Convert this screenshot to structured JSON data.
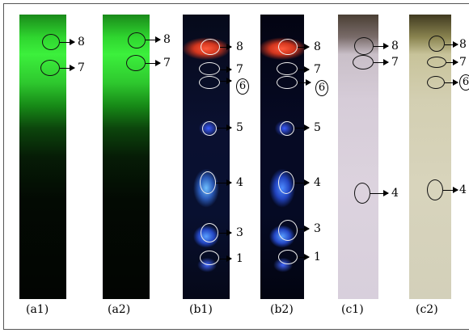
{
  "panels": {
    "a1": {
      "caption": "(a1)",
      "labels": [
        "8",
        "7"
      ]
    },
    "a2": {
      "caption": "(a2)",
      "labels": [
        "8",
        "7"
      ]
    },
    "b1": {
      "caption": "(b1)",
      "labels": [
        "8",
        "7",
        "6",
        "5",
        "4",
        "3",
        "1"
      ]
    },
    "b2": {
      "caption": "(b2)",
      "labels": [
        "8",
        "7",
        "6",
        "5",
        "4",
        "3",
        "1"
      ]
    },
    "c1": {
      "caption": "(c1)",
      "labels": [
        "8",
        "7",
        "4"
      ]
    },
    "c2": {
      "caption": "(c2)",
      "labels": [
        "8",
        "7",
        "6",
        "4"
      ]
    }
  }
}
